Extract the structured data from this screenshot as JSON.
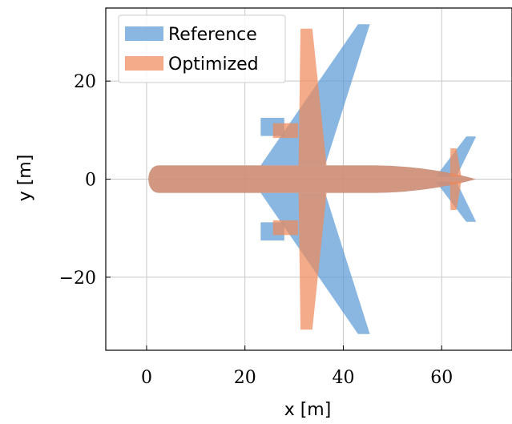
{
  "chart_data": {
    "type": "area",
    "xlabel": "x [m]",
    "ylabel": "y [m]",
    "xlim": [
      -8.3,
      74.3
    ],
    "ylim": [
      -34.9,
      34.9
    ],
    "xticks": [
      0,
      20,
      40,
      60
    ],
    "xtick_labels": [
      "0",
      "20",
      "40",
      "60"
    ],
    "yticks": [
      -20,
      0,
      20
    ],
    "ytick_labels": [
      "−20",
      "0",
      "20"
    ],
    "grid": true,
    "legend_position": "top-left",
    "series": [
      {
        "name": "Reference",
        "color": "#5b9bd5",
        "fuselage": {
          "x_start": 0,
          "x_end": 67.0,
          "half_width": 2.8
        },
        "shapes": [
          {
            "part": "wing-left",
            "points": [
              [
                23.2,
                2.8
              ],
              [
                43.0,
                31.6
              ],
              [
                45.4,
                31.6
              ],
              [
                36.3,
                2.8
              ]
            ]
          },
          {
            "part": "wing-right",
            "points": [
              [
                23.2,
                -2.8
              ],
              [
                43.0,
                -31.6
              ],
              [
                45.4,
                -31.6
              ],
              [
                36.3,
                -2.8
              ]
            ]
          },
          {
            "part": "engine-left",
            "points": [
              [
                23.2,
                8.8
              ],
              [
                28.0,
                8.8
              ],
              [
                28.0,
                12.5
              ],
              [
                23.2,
                12.5
              ]
            ]
          },
          {
            "part": "engine-right",
            "points": [
              [
                23.2,
                -8.8
              ],
              [
                28.0,
                -8.8
              ],
              [
                28.0,
                -12.5
              ],
              [
                23.2,
                -12.5
              ]
            ]
          },
          {
            "part": "tail-left",
            "points": [
              [
                58.8,
                0.5
              ],
              [
                65.0,
                8.7
              ],
              [
                67.0,
                8.7
              ],
              [
                63.0,
                0.5
              ]
            ]
          },
          {
            "part": "tail-right",
            "points": [
              [
                58.8,
                -0.5
              ],
              [
                65.0,
                -8.7
              ],
              [
                67.0,
                -8.7
              ],
              [
                63.0,
                -0.5
              ]
            ]
          }
        ]
      },
      {
        "name": "Optimized",
        "color": "#ee8b5c",
        "fuselage": {
          "x_start": 0,
          "x_end": 67.0,
          "half_width": 2.8
        },
        "shapes": [
          {
            "part": "wing-left",
            "points": [
              [
                30.9,
                2.8
              ],
              [
                31.3,
                30.7
              ],
              [
                33.7,
                30.7
              ],
              [
                36.6,
                2.8
              ]
            ]
          },
          {
            "part": "wing-right",
            "points": [
              [
                30.9,
                -2.8
              ],
              [
                31.3,
                -30.7
              ],
              [
                33.7,
                -30.7
              ],
              [
                36.6,
                -2.8
              ]
            ]
          },
          {
            "part": "nacelle-left",
            "points": [
              [
                25.7,
                8.4
              ],
              [
                30.8,
                8.4
              ],
              [
                30.8,
                11.4
              ],
              [
                25.7,
                11.4
              ]
            ]
          },
          {
            "part": "nacelle-right",
            "points": [
              [
                25.7,
                -8.4
              ],
              [
                30.8,
                -8.4
              ],
              [
                30.8,
                -11.4
              ],
              [
                25.7,
                -11.4
              ]
            ]
          },
          {
            "part": "tail-left",
            "points": [
              [
                61.7,
                0.5
              ],
              [
                61.8,
                6.3
              ],
              [
                63.0,
                6.3
              ],
              [
                64.0,
                0.5
              ]
            ]
          },
          {
            "part": "tail-right",
            "points": [
              [
                61.7,
                -0.5
              ],
              [
                61.8,
                -6.3
              ],
              [
                63.0,
                -6.3
              ],
              [
                64.0,
                -0.5
              ]
            ]
          }
        ]
      }
    ]
  }
}
